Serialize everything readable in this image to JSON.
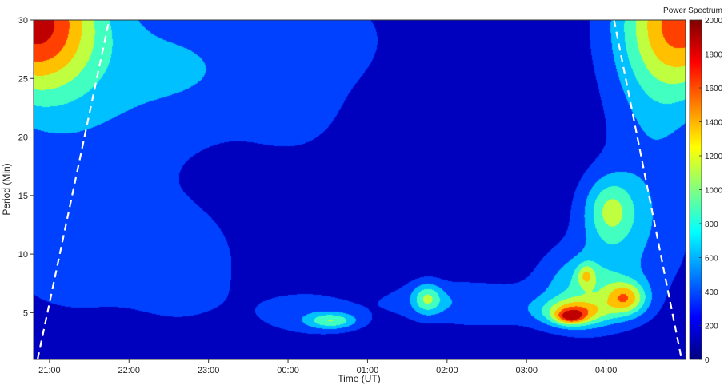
{
  "chart_data": {
    "type": "heatmap",
    "subtype": "filled-contour-wavelet-power",
    "xlabel": "Time (UT)",
    "ylabel": "Period (Min)",
    "colorbar_label": "Power Spectrum",
    "x_ticks": [
      "21:00",
      "22:00",
      "23:00",
      "00:00",
      "01:00",
      "02:00",
      "03:00",
      "04:00"
    ],
    "x_range_hours": [
      20.8,
      29.0
    ],
    "x_tick_hours": [
      21,
      22,
      23,
      24,
      25,
      26,
      27,
      28
    ],
    "ylim": [
      1,
      30
    ],
    "y_ticks": [
      5,
      10,
      15,
      20,
      25,
      30
    ],
    "colorbar_range": [
      0,
      2000
    ],
    "colorbar_ticks": [
      0,
      200,
      400,
      600,
      800,
      1000,
      1200,
      1400,
      1600,
      1800,
      2000
    ],
    "colormap": "jet",
    "colormap_stops": [
      "#00007f",
      "#0000ff",
      "#0080ff",
      "#00ffff",
      "#80ff80",
      "#ffff00",
      "#ff8000",
      "#ff0000",
      "#7f0000"
    ],
    "contour_levels": [
      0,
      250,
      500,
      750,
      1000,
      1250,
      1500,
      1750,
      2000
    ],
    "background_level": 100,
    "power_features": [
      {
        "hour": 21.6,
        "period": 25.0,
        "power": 330,
        "sx": 0.9,
        "sy": 7.0
      },
      {
        "hour": 22.9,
        "period": 26.0,
        "power": 280,
        "sx": 0.7,
        "sy": 4.0
      },
      {
        "hour": 24.1,
        "period": 24.0,
        "power": 260,
        "sx": 0.5,
        "sy": 4.0
      },
      {
        "hour": 24.7,
        "period": 28.5,
        "power": 230,
        "sx": 0.4,
        "sy": 2.5
      },
      {
        "hour": 28.6,
        "period": 22.0,
        "power": 300,
        "sx": 0.4,
        "sy": 7.0
      },
      {
        "hour": 21.3,
        "period": 11.0,
        "power": 300,
        "sx": 0.7,
        "sy": 4.5
      },
      {
        "hour": 22.7,
        "period": 9.0,
        "power": 280,
        "sx": 0.5,
        "sy": 3.5
      },
      {
        "hour": 28.3,
        "period": 11.5,
        "power": 290,
        "sx": 0.5,
        "sy": 4.0
      },
      {
        "hour": 24.2,
        "period": 5.0,
        "power": 250,
        "sx": 0.5,
        "sy": 1.5
      },
      {
        "hour": 25.9,
        "period": 6.0,
        "power": 250,
        "sx": 0.6,
        "sy": 1.3
      },
      {
        "hour": 26.6,
        "period": 5.5,
        "power": 230,
        "sx": 0.5,
        "sy": 1.3
      },
      {
        "hour": 20.8,
        "period": 30.0,
        "power": 1600,
        "sx": 0.55,
        "sy": 4.5
      },
      {
        "hour": 29.0,
        "period": 30.0,
        "power": 1450,
        "sx": 0.55,
        "sy": 4.5
      },
      {
        "hour": 24.55,
        "period": 4.3,
        "power": 720,
        "sx": 0.22,
        "sy": 0.5
      },
      {
        "hour": 25.75,
        "period": 6.2,
        "power": 680,
        "sx": 0.13,
        "sy": 0.9
      },
      {
        "hour": 28.05,
        "period": 13.7,
        "power": 720,
        "sx": 0.22,
        "sy": 2.0
      },
      {
        "hour": 27.75,
        "period": 7.0,
        "power": 650,
        "sx": 0.4,
        "sy": 2.2
      },
      {
        "hour": 27.6,
        "period": 5.0,
        "power": 1000,
        "sx": 0.28,
        "sy": 0.8
      },
      {
        "hour": 27.55,
        "period": 4.6,
        "power": 700,
        "sx": 0.12,
        "sy": 0.4
      },
      {
        "hour": 27.75,
        "period": 8.2,
        "power": 550,
        "sx": 0.08,
        "sy": 0.7
      },
      {
        "hour": 28.25,
        "period": 6.2,
        "power": 1000,
        "sx": 0.18,
        "sy": 1.0
      }
    ],
    "cone_of_influence": {
      "left_line": [
        [
          20.85,
          1.0
        ],
        [
          21.75,
          30.0
        ]
      ],
      "right_line": [
        [
          28.1,
          30.0
        ],
        [
          28.95,
          1.0
        ]
      ]
    },
    "grid": false,
    "legend": "colorbar-right"
  }
}
